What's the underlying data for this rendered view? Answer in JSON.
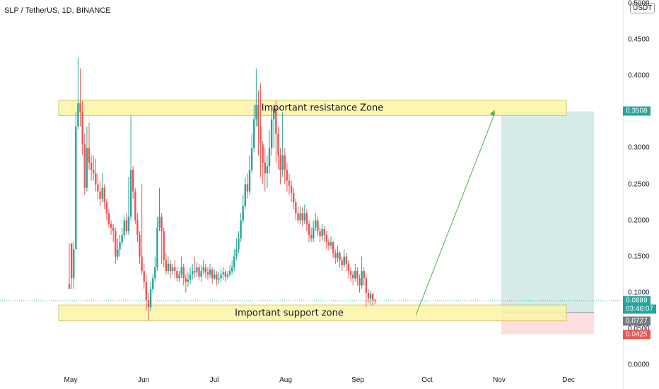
{
  "header": {
    "title": "SLP / TetherUS, 1D, BINANCE",
    "currency": "USDT"
  },
  "annotations": {
    "resistance": "Important resistance Zone",
    "support": "Important support zone"
  },
  "price_tags": {
    "target": "0.3508",
    "current": "0.0889",
    "countdown": "03:46:07",
    "entry": "0.0727",
    "stop": "0.0425"
  },
  "colors": {
    "up": "#26a69a",
    "down": "#ef5350",
    "zone": "#fdf5a6",
    "zone_border": "#c9bf5a",
    "profit": "#cde8e4",
    "loss": "#fbd9d9",
    "arrow": "#4caf50"
  },
  "chart_data": {
    "type": "candlestick",
    "title": "SLP / TetherUS, 1D, BINANCE",
    "ylim": [
      0,
      0.5
    ],
    "y_ticks": [
      "0.0000",
      "0.0500",
      "0.1000",
      "0.1500",
      "0.2000",
      "0.2500",
      "0.3000",
      "0.3500",
      "0.4000",
      "0.4500",
      "0.5000"
    ],
    "x_ticks": [
      "May",
      "Jun",
      "Jul",
      "Aug",
      "Sep",
      "Oct",
      "Nov",
      "Dec"
    ],
    "resistance_zone": [
      0.345,
      0.366
    ],
    "support_zone": [
      0.061,
      0.083
    ],
    "target": 0.3508,
    "current_price": 0.0889,
    "entry": 0.0727,
    "stop": 0.0425,
    "candles": [
      [
        0.112,
        0.105,
        0.168,
        0.105
      ],
      [
        0.168,
        0.12,
        0.168,
        0.105
      ],
      [
        0.12,
        0.16,
        0.17,
        0.105
      ],
      [
        0.16,
        0.33,
        0.35,
        0.16
      ],
      [
        0.33,
        0.362,
        0.425,
        0.325
      ],
      [
        0.362,
        0.35,
        0.41,
        0.33
      ],
      [
        0.35,
        0.305,
        0.365,
        0.29
      ],
      [
        0.305,
        0.245,
        0.32,
        0.235
      ],
      [
        0.245,
        0.3,
        0.33,
        0.24
      ],
      [
        0.3,
        0.28,
        0.335,
        0.27
      ],
      [
        0.28,
        0.27,
        0.29,
        0.255
      ],
      [
        0.27,
        0.265,
        0.29,
        0.255
      ],
      [
        0.265,
        0.25,
        0.285,
        0.24
      ],
      [
        0.25,
        0.24,
        0.265,
        0.23
      ],
      [
        0.24,
        0.23,
        0.255,
        0.22
      ],
      [
        0.23,
        0.245,
        0.265,
        0.225
      ],
      [
        0.245,
        0.225,
        0.25,
        0.215
      ],
      [
        0.225,
        0.21,
        0.23,
        0.2
      ],
      [
        0.21,
        0.195,
        0.215,
        0.19
      ],
      [
        0.195,
        0.19,
        0.2,
        0.18
      ],
      [
        0.19,
        0.185,
        0.195,
        0.17
      ],
      [
        0.185,
        0.15,
        0.19,
        0.14
      ],
      [
        0.15,
        0.16,
        0.175,
        0.145
      ],
      [
        0.16,
        0.17,
        0.18,
        0.15
      ],
      [
        0.17,
        0.18,
        0.19,
        0.165
      ],
      [
        0.18,
        0.2,
        0.205,
        0.175
      ],
      [
        0.2,
        0.185,
        0.21,
        0.18
      ],
      [
        0.185,
        0.205,
        0.26,
        0.18
      ],
      [
        0.205,
        0.27,
        0.345,
        0.2
      ],
      [
        0.27,
        0.24,
        0.275,
        0.23
      ],
      [
        0.24,
        0.2,
        0.245,
        0.195
      ],
      [
        0.2,
        0.18,
        0.21,
        0.17
      ],
      [
        0.18,
        0.15,
        0.185,
        0.14
      ],
      [
        0.15,
        0.13,
        0.25,
        0.125
      ],
      [
        0.13,
        0.115,
        0.14,
        0.105
      ],
      [
        0.115,
        0.09,
        0.125,
        0.075
      ],
      [
        0.09,
        0.08,
        0.1,
        0.062
      ],
      [
        0.08,
        0.105,
        0.115,
        0.075
      ],
      [
        0.105,
        0.12,
        0.125,
        0.1
      ],
      [
        0.12,
        0.135,
        0.15,
        0.115
      ],
      [
        0.135,
        0.19,
        0.205,
        0.13
      ],
      [
        0.19,
        0.205,
        0.245,
        0.185
      ],
      [
        0.205,
        0.185,
        0.21,
        0.14
      ],
      [
        0.185,
        0.145,
        0.19,
        0.135
      ],
      [
        0.145,
        0.13,
        0.155,
        0.125
      ],
      [
        0.13,
        0.14,
        0.15,
        0.125
      ],
      [
        0.14,
        0.13,
        0.145,
        0.12
      ],
      [
        0.13,
        0.135,
        0.14,
        0.125
      ],
      [
        0.135,
        0.13,
        0.145,
        0.12
      ],
      [
        0.13,
        0.12,
        0.135,
        0.115
      ],
      [
        0.12,
        0.125,
        0.13,
        0.115
      ],
      [
        0.125,
        0.135,
        0.15,
        0.12
      ],
      [
        0.135,
        0.12,
        0.14,
        0.11
      ],
      [
        0.12,
        0.115,
        0.125,
        0.1
      ],
      [
        0.115,
        0.118,
        0.128,
        0.108
      ],
      [
        0.118,
        0.125,
        0.135,
        0.112
      ],
      [
        0.125,
        0.13,
        0.14,
        0.118
      ],
      [
        0.13,
        0.128,
        0.15,
        0.12
      ],
      [
        0.128,
        0.135,
        0.142,
        0.122
      ],
      [
        0.135,
        0.122,
        0.14,
        0.118
      ],
      [
        0.122,
        0.13,
        0.138,
        0.115
      ],
      [
        0.13,
        0.135,
        0.145,
        0.125
      ],
      [
        0.135,
        0.128,
        0.14,
        0.12
      ],
      [
        0.128,
        0.125,
        0.135,
        0.118
      ],
      [
        0.125,
        0.132,
        0.14,
        0.12
      ],
      [
        0.132,
        0.12,
        0.135,
        0.112
      ],
      [
        0.12,
        0.125,
        0.132,
        0.118
      ],
      [
        0.125,
        0.118,
        0.13,
        0.11
      ],
      [
        0.118,
        0.12,
        0.128,
        0.112
      ],
      [
        0.12,
        0.125,
        0.132,
        0.115
      ],
      [
        0.125,
        0.128,
        0.135,
        0.118
      ],
      [
        0.128,
        0.122,
        0.132,
        0.115
      ],
      [
        0.122,
        0.125,
        0.13,
        0.118
      ],
      [
        0.125,
        0.13,
        0.138,
        0.122
      ],
      [
        0.13,
        0.135,
        0.145,
        0.125
      ],
      [
        0.135,
        0.15,
        0.16,
        0.13
      ],
      [
        0.15,
        0.16,
        0.175,
        0.145
      ],
      [
        0.16,
        0.175,
        0.185,
        0.155
      ],
      [
        0.175,
        0.2,
        0.21,
        0.17
      ],
      [
        0.2,
        0.22,
        0.235,
        0.195
      ],
      [
        0.22,
        0.25,
        0.26,
        0.215
      ],
      [
        0.25,
        0.24,
        0.265,
        0.23
      ],
      [
        0.24,
        0.27,
        0.29,
        0.235
      ],
      [
        0.27,
        0.3,
        0.32,
        0.265
      ],
      [
        0.3,
        0.34,
        0.36,
        0.295
      ],
      [
        0.34,
        0.36,
        0.41,
        0.33
      ],
      [
        0.36,
        0.33,
        0.38,
        0.29
      ],
      [
        0.33,
        0.305,
        0.39,
        0.26
      ],
      [
        0.305,
        0.28,
        0.31,
        0.25
      ],
      [
        0.28,
        0.265,
        0.3,
        0.24
      ],
      [
        0.265,
        0.275,
        0.29,
        0.245
      ],
      [
        0.275,
        0.3,
        0.325,
        0.265
      ],
      [
        0.3,
        0.34,
        0.355,
        0.29
      ],
      [
        0.34,
        0.355,
        0.36,
        0.3
      ],
      [
        0.355,
        0.32,
        0.365,
        0.28
      ],
      [
        0.32,
        0.29,
        0.33,
        0.27
      ],
      [
        0.29,
        0.27,
        0.3,
        0.25
      ],
      [
        0.27,
        0.29,
        0.35,
        0.26
      ],
      [
        0.29,
        0.27,
        0.3,
        0.25
      ],
      [
        0.27,
        0.255,
        0.28,
        0.24
      ],
      [
        0.255,
        0.248,
        0.265,
        0.235
      ],
      [
        0.248,
        0.238,
        0.255,
        0.225
      ],
      [
        0.238,
        0.225,
        0.245,
        0.215
      ],
      [
        0.225,
        0.21,
        0.23,
        0.2
      ],
      [
        0.21,
        0.2,
        0.22,
        0.195
      ],
      [
        0.2,
        0.21,
        0.22,
        0.195
      ],
      [
        0.21,
        0.2,
        0.218,
        0.192
      ],
      [
        0.2,
        0.21,
        0.222,
        0.195
      ],
      [
        0.21,
        0.195,
        0.215,
        0.185
      ],
      [
        0.195,
        0.18,
        0.2,
        0.17
      ],
      [
        0.18,
        0.175,
        0.19,
        0.17
      ],
      [
        0.175,
        0.19,
        0.2,
        0.17
      ],
      [
        0.19,
        0.2,
        0.21,
        0.185
      ],
      [
        0.2,
        0.185,
        0.205,
        0.178
      ],
      [
        0.185,
        0.178,
        0.19,
        0.17
      ],
      [
        0.178,
        0.188,
        0.195,
        0.172
      ],
      [
        0.188,
        0.18,
        0.192,
        0.17
      ],
      [
        0.18,
        0.17,
        0.185,
        0.16
      ],
      [
        0.17,
        0.165,
        0.175,
        0.158
      ],
      [
        0.165,
        0.17,
        0.178,
        0.16
      ],
      [
        0.17,
        0.155,
        0.172,
        0.148
      ],
      [
        0.155,
        0.148,
        0.16,
        0.14
      ],
      [
        0.148,
        0.155,
        0.165,
        0.142
      ],
      [
        0.155,
        0.145,
        0.158,
        0.135
      ],
      [
        0.145,
        0.138,
        0.15,
        0.13
      ],
      [
        0.138,
        0.15,
        0.16,
        0.135
      ],
      [
        0.15,
        0.14,
        0.155,
        0.13
      ],
      [
        0.14,
        0.13,
        0.145,
        0.12
      ],
      [
        0.13,
        0.125,
        0.135,
        0.115
      ],
      [
        0.125,
        0.12,
        0.13,
        0.11
      ],
      [
        0.12,
        0.13,
        0.14,
        0.115
      ],
      [
        0.13,
        0.12,
        0.135,
        0.11
      ],
      [
        0.12,
        0.11,
        0.125,
        0.1
      ],
      [
        0.11,
        0.13,
        0.15,
        0.105
      ],
      [
        0.13,
        0.12,
        0.135,
        0.11
      ],
      [
        0.12,
        0.1,
        0.125,
        0.08
      ],
      [
        0.1,
        0.092,
        0.105,
        0.085
      ],
      [
        0.092,
        0.098,
        0.102,
        0.082
      ],
      [
        0.098,
        0.09,
        0.1,
        0.082
      ],
      [
        0.09,
        0.089,
        0.092,
        0.084
      ]
    ]
  }
}
